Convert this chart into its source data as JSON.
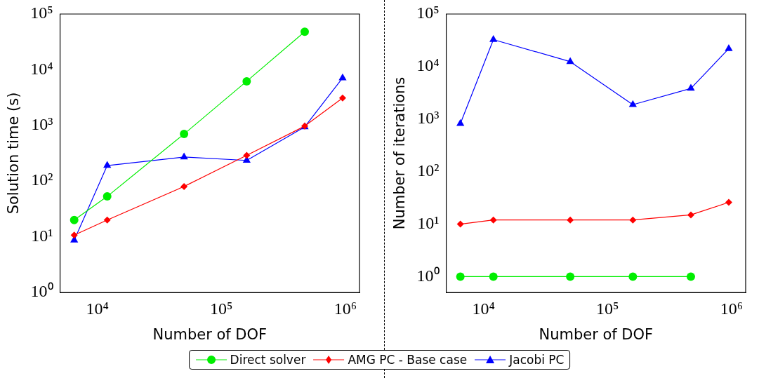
{
  "chart_data": [
    {
      "type": "line",
      "xlabel": "Number of DOF",
      "ylabel": "Solution time (s)",
      "log": "xy",
      "legend": "bottom",
      "x": [
        6500,
        12000,
        50000,
        160000,
        470000,
        950000
      ],
      "xlim": [
        5000,
        1300000
      ],
      "xticks": [
        {
          "value": 10000,
          "label": "10⁴"
        },
        {
          "value": 100000,
          "label": "10⁵"
        },
        {
          "value": 1000000,
          "label": "10⁶"
        }
      ],
      "ylim": [
        1,
        100000
      ],
      "yticks": [
        {
          "value": 1,
          "label": "10⁰"
        },
        {
          "value": 10,
          "label": "10¹"
        },
        {
          "value": 100,
          "label": "10²"
        },
        {
          "value": 1000,
          "label": "10³"
        },
        {
          "value": 10000,
          "label": "10⁴"
        },
        {
          "value": 100000,
          "label": "10⁵"
        }
      ],
      "series": [
        {
          "name": "Direct solver",
          "color": "#00ee00",
          "marker": "circle",
          "x": [
            6500,
            12000,
            50000,
            160000,
            470000
          ],
          "values": [
            20,
            53,
            700,
            6200,
            48000
          ]
        },
        {
          "name": "AMG PC - Base case",
          "color": "#ff0000",
          "marker": "diamond",
          "values": [
            10.7,
            20,
            80,
            290,
            970,
            3100
          ]
        },
        {
          "name": "Jacobi PC",
          "color": "#0000ff",
          "marker": "triangle",
          "values": [
            8.7,
            190,
            270,
            235,
            940,
            7100
          ]
        }
      ]
    },
    {
      "type": "line",
      "xlabel": "Number of DOF",
      "ylabel": "Number of iterations",
      "log": "xy",
      "legend": "bottom",
      "x": [
        6500,
        12000,
        50000,
        160000,
        470000,
        950000
      ],
      "xlim": [
        5000,
        1300000
      ],
      "xticks": [
        {
          "value": 10000,
          "label": "10⁴"
        },
        {
          "value": 100000,
          "label": "10⁵"
        },
        {
          "value": 1000000,
          "label": "10⁶"
        }
      ],
      "ylim": [
        0.5,
        100000
      ],
      "yticks": [
        {
          "value": 1,
          "label": "10⁰"
        },
        {
          "value": 10,
          "label": "10¹"
        },
        {
          "value": 100,
          "label": "10²"
        },
        {
          "value": 1000,
          "label": "10³"
        },
        {
          "value": 10000,
          "label": "10⁴"
        },
        {
          "value": 100000,
          "label": "10⁵"
        }
      ],
      "series": [
        {
          "name": "Direct solver",
          "color": "#00ee00",
          "marker": "circle",
          "x": [
            6500,
            12000,
            50000,
            160000,
            470000
          ],
          "values": [
            1,
            1,
            1,
            1,
            1
          ]
        },
        {
          "name": "AMG PC - Base case",
          "color": "#ff0000",
          "marker": "diamond",
          "values": [
            10,
            12,
            12,
            12,
            15,
            26
          ]
        },
        {
          "name": "Jacobi PC",
          "color": "#0000ff",
          "marker": "triangle",
          "values": [
            820,
            32600,
            12400,
            1880,
            3830,
            21900
          ]
        }
      ]
    }
  ]
}
